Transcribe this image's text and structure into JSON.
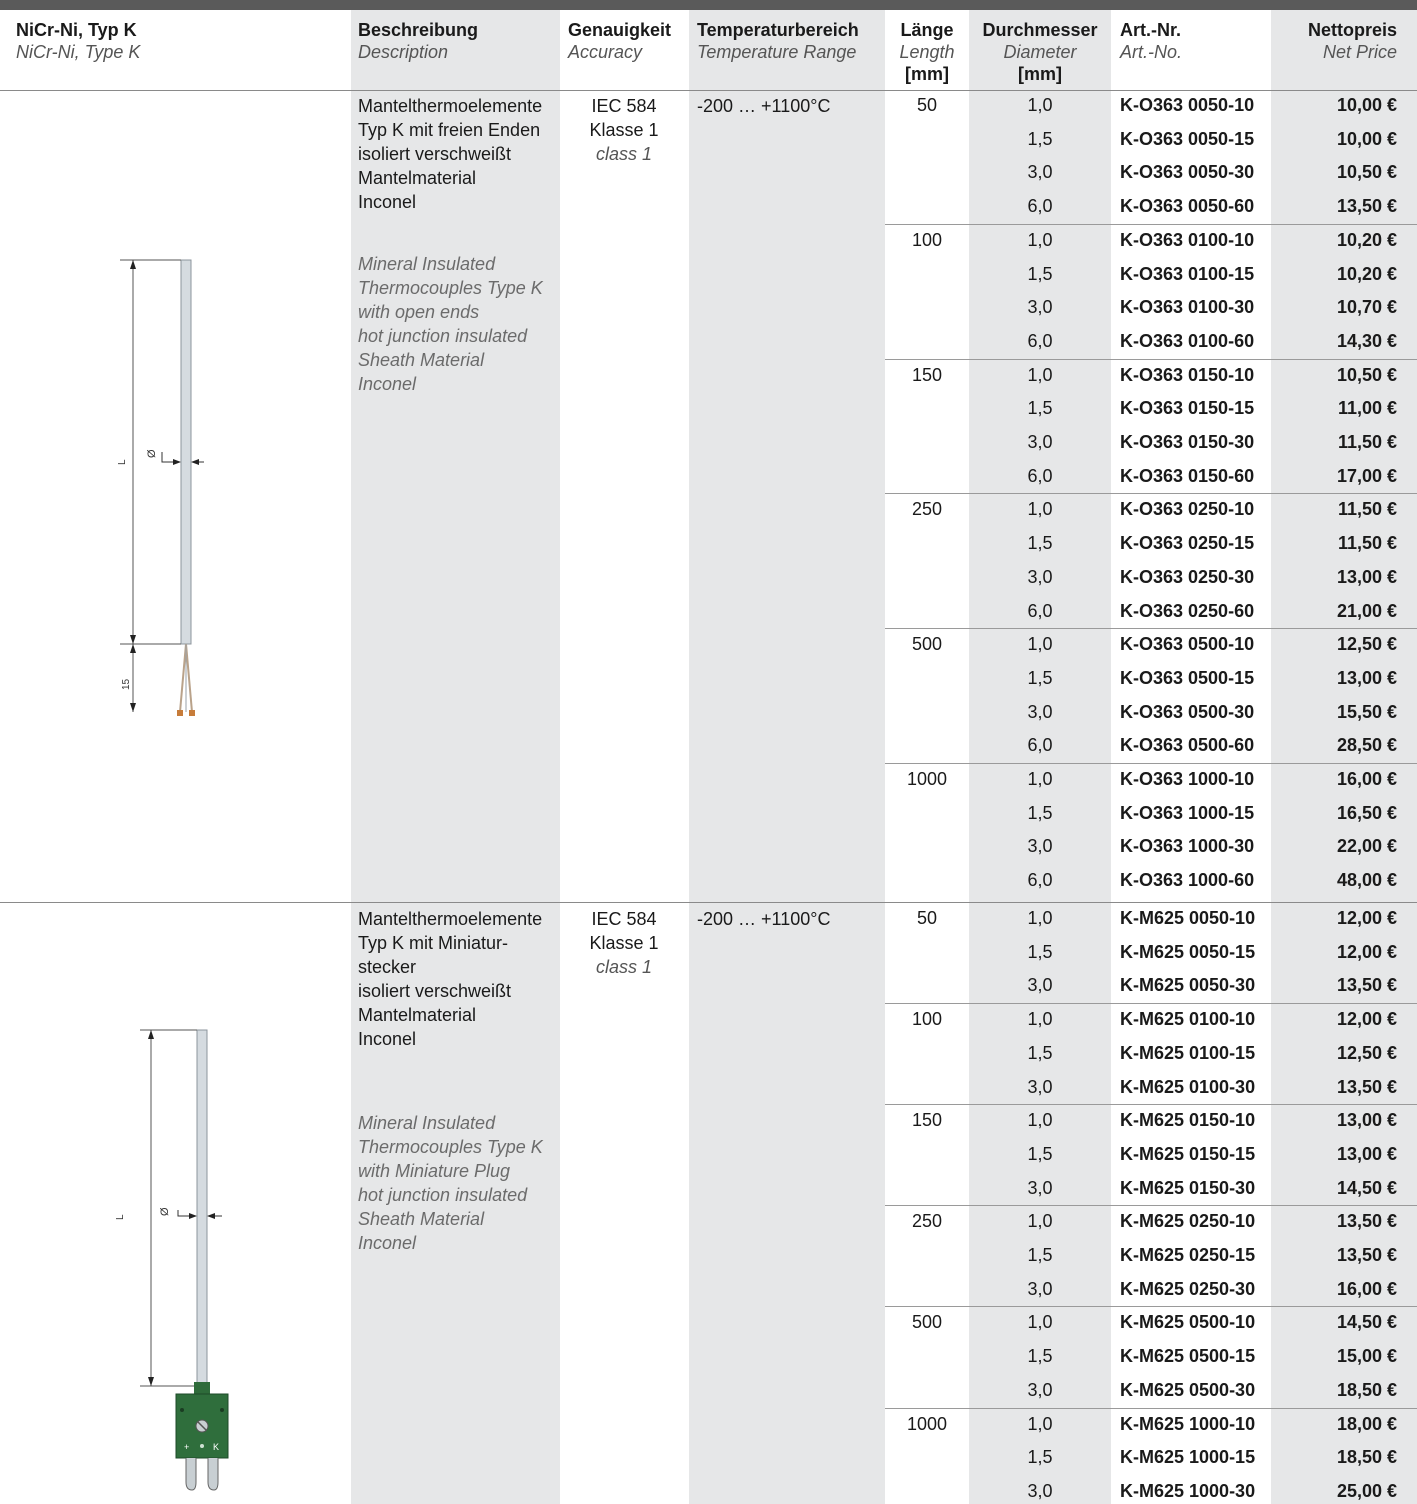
{
  "header": {
    "product_de": "NiCr-Ni, Typ K",
    "product_en": "NiCr-Ni, Type K",
    "desc_de": "Beschreibung",
    "desc_en": "Description",
    "acc_de": "Genauigkeit",
    "acc_en": "Accuracy",
    "temp_de": "Temperaturbereich",
    "temp_en": "Temperature Range",
    "len_de": "Länge",
    "len_en": "Length",
    "len_unit": "[mm]",
    "dia_de": "Durchmesser",
    "dia_en": "Diameter",
    "dia_unit": "[mm]",
    "art_de": "Art.-Nr.",
    "art_en": "Art.-No.",
    "price_de": "Nettopreis",
    "price_en": "Net Price"
  },
  "sections": [
    {
      "desc_de": "Mantelthermoelemente\nTyp K mit freien Enden\nisoliert verschweißt\nMantelmaterial\nInconel",
      "desc_en": "Mineral Insulated\nThermocouples Type K\nwith open ends\nhot junction insulated\nSheath Material\nInconel",
      "acc_1": "IEC 584",
      "acc_2": "Klasse 1",
      "acc_3": "class 1",
      "temp": "-200 … +1100°C",
      "diagram": {
        "label_L": "L",
        "label_dia": "Ø",
        "label_15": "15"
      },
      "groups": [
        {
          "length": "50",
          "rows": [
            {
              "dia": "1,0",
              "art": "K-O363 0050-10",
              "price": "10,00 €"
            },
            {
              "dia": "1,5",
              "art": "K-O363 0050-15",
              "price": "10,00 €"
            },
            {
              "dia": "3,0",
              "art": "K-O363 0050-30",
              "price": "10,50 €"
            },
            {
              "dia": "6,0",
              "art": "K-O363 0050-60",
              "price": "13,50 €"
            }
          ]
        },
        {
          "length": "100",
          "rows": [
            {
              "dia": "1,0",
              "art": "K-O363 0100-10",
              "price": "10,20 €"
            },
            {
              "dia": "1,5",
              "art": "K-O363 0100-15",
              "price": "10,20 €"
            },
            {
              "dia": "3,0",
              "art": "K-O363 0100-30",
              "price": "10,70 €"
            },
            {
              "dia": "6,0",
              "art": "K-O363 0100-60",
              "price": "14,30 €"
            }
          ]
        },
        {
          "length": "150",
          "rows": [
            {
              "dia": "1,0",
              "art": "K-O363 0150-10",
              "price": "10,50 €"
            },
            {
              "dia": "1,5",
              "art": "K-O363 0150-15",
              "price": "11,00 €"
            },
            {
              "dia": "3,0",
              "art": "K-O363 0150-30",
              "price": "11,50 €"
            },
            {
              "dia": "6,0",
              "art": "K-O363 0150-60",
              "price": "17,00 €"
            }
          ]
        },
        {
          "length": "250",
          "rows": [
            {
              "dia": "1,0",
              "art": "K-O363 0250-10",
              "price": "11,50 €"
            },
            {
              "dia": "1,5",
              "art": "K-O363 0250-15",
              "price": "11,50 €"
            },
            {
              "dia": "3,0",
              "art": "K-O363 0250-30",
              "price": "13,00 €"
            },
            {
              "dia": "6,0",
              "art": "K-O363 0250-60",
              "price": "21,00 €"
            }
          ]
        },
        {
          "length": "500",
          "rows": [
            {
              "dia": "1,0",
              "art": "K-O363 0500-10",
              "price": "12,50 €"
            },
            {
              "dia": "1,5",
              "art": "K-O363 0500-15",
              "price": "13,00 €"
            },
            {
              "dia": "3,0",
              "art": "K-O363 0500-30",
              "price": "15,50 €"
            },
            {
              "dia": "6,0",
              "art": "K-O363 0500-60",
              "price": "28,50 €"
            }
          ]
        },
        {
          "length": "1000",
          "rows": [
            {
              "dia": "1,0",
              "art": "K-O363 1000-10",
              "price": "16,00 €"
            },
            {
              "dia": "1,5",
              "art": "K-O363 1000-15",
              "price": "16,50 €"
            },
            {
              "dia": "3,0",
              "art": "K-O363 1000-30",
              "price": "22,00 €"
            },
            {
              "dia": "6,0",
              "art": "K-O363 1000-60",
              "price": "48,00 €"
            }
          ]
        }
      ]
    },
    {
      "desc_de": "Mantelthermoelemente\nTyp K mit Miniatur-\nstecker\nisoliert verschweißt\nMantelmaterial\nInconel",
      "desc_en": "Mineral Insulated\nThermocouples Type K\nwith Miniature Plug\nhot junction insulated\nSheath Material\nInconel",
      "acc_1": "IEC 584",
      "acc_2": "Klasse 1",
      "acc_3": "class 1",
      "temp": "-200 … +1100°C",
      "diagram": {
        "label_L": "L",
        "label_dia": "Ø",
        "plug_plus": "+",
        "plug_k": "K"
      },
      "groups": [
        {
          "length": "50",
          "rows": [
            {
              "dia": "1,0",
              "art": "K-M625 0050-10",
              "price": "12,00 €"
            },
            {
              "dia": "1,5",
              "art": "K-M625 0050-15",
              "price": "12,00 €"
            },
            {
              "dia": "3,0",
              "art": "K-M625 0050-30",
              "price": "13,50 €"
            }
          ]
        },
        {
          "length": "100",
          "rows": [
            {
              "dia": "1,0",
              "art": "K-M625 0100-10",
              "price": "12,00 €"
            },
            {
              "dia": "1,5",
              "art": "K-M625 0100-15",
              "price": "12,50 €"
            },
            {
              "dia": "3,0",
              "art": "K-M625 0100-30",
              "price": "13,50 €"
            }
          ]
        },
        {
          "length": "150",
          "rows": [
            {
              "dia": "1,0",
              "art": "K-M625 0150-10",
              "price": "13,00 €"
            },
            {
              "dia": "1,5",
              "art": "K-M625 0150-15",
              "price": "13,00 €"
            },
            {
              "dia": "3,0",
              "art": "K-M625 0150-30",
              "price": "14,50 €"
            }
          ]
        },
        {
          "length": "250",
          "rows": [
            {
              "dia": "1,0",
              "art": "K-M625 0250-10",
              "price": "13,50 €"
            },
            {
              "dia": "1,5",
              "art": "K-M625 0250-15",
              "price": "13,50 €"
            },
            {
              "dia": "3,0",
              "art": "K-M625 0250-30",
              "price": "16,00 €"
            }
          ]
        },
        {
          "length": "500",
          "rows": [
            {
              "dia": "1,0",
              "art": "K-M625 0500-10",
              "price": "14,50 €"
            },
            {
              "dia": "1,5",
              "art": "K-M625 0500-15",
              "price": "15,00 €"
            },
            {
              "dia": "3,0",
              "art": "K-M625 0500-30",
              "price": "18,50 €"
            }
          ]
        },
        {
          "length": "1000",
          "rows": [
            {
              "dia": "1,0",
              "art": "K-M625 1000-10",
              "price": "18,00 €"
            },
            {
              "dia": "1,5",
              "art": "K-M625 1000-15",
              "price": "18,50 €"
            },
            {
              "dia": "3,0",
              "art": "K-M625 1000-30",
              "price": "25,00 €"
            }
          ]
        }
      ]
    }
  ]
}
